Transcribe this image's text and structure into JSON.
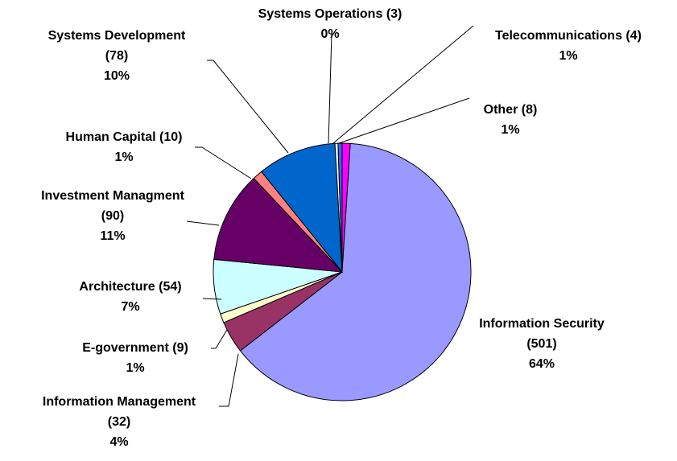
{
  "chart_data": {
    "type": "pie",
    "categories": [
      "Other",
      "Information Security",
      "Information Management",
      "E-government",
      "Architecture",
      "Investment Managment",
      "Human Capital",
      "Systems Development",
      "Systems Operations",
      "Telecommunications"
    ],
    "values": [
      8,
      501,
      32,
      9,
      54,
      90,
      10,
      78,
      3,
      4
    ],
    "value_labels": [
      "(8)",
      "(501)",
      "(32)",
      "(9)",
      "(54)",
      "(90)",
      "(10)",
      "(78)",
      "(3)",
      "(4)"
    ],
    "percents": [
      {
        "value": 1,
        "label": "1%"
      },
      {
        "value": 64,
        "label": "64%"
      },
      {
        "value": 4,
        "label": "4%"
      },
      {
        "value": 1,
        "label": "1%"
      },
      {
        "value": 7,
        "label": "7%"
      },
      {
        "value": 11,
        "label": "11%"
      },
      {
        "value": 1,
        "label": "1%"
      },
      {
        "value": 10,
        "label": "10%"
      },
      {
        "value": 0,
        "label": "0%"
      },
      {
        "value": 1,
        "label": "1%"
      }
    ],
    "colors": [
      "#ff00ff",
      "#9999ff",
      "#993366",
      "#ffffcc",
      "#ccffff",
      "#660066",
      "#ff8080",
      "#0066cc",
      "#ffffff",
      "#3366ff"
    ]
  }
}
